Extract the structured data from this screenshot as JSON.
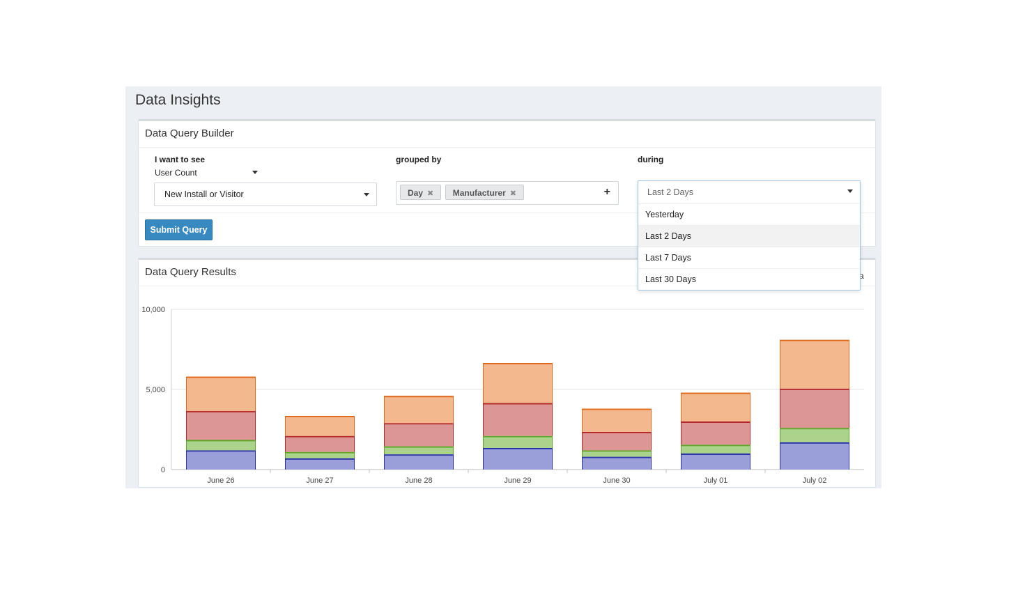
{
  "page_title": "Data Insights",
  "builder": {
    "title": "Data Query Builder",
    "want_label": "I want to see",
    "metric_value": "User Count",
    "subtype_value": "New Install or Visitor",
    "grouped_label": "grouped by",
    "group_tags": [
      "Day",
      "Manufacturer"
    ],
    "add_icon": "plus-icon",
    "during_label": "during",
    "submit_label": "Submit Query"
  },
  "period_dropdown": {
    "current": "Last 2 Days",
    "options": [
      "Yesterday",
      "Last 2 Days",
      "Last 7 Days",
      "Last 30 Days"
    ],
    "highlighted": "Last 2 Days"
  },
  "results": {
    "title": "Data Query Results",
    "partial_text": "a"
  },
  "colors": {
    "primary_button": "#3789c0",
    "header_bg": "#ecf0f4"
  },
  "chart_data": {
    "type": "bar",
    "stacked": true,
    "categories": [
      "June 26",
      "June 27",
      "June 28",
      "June 29",
      "June 30",
      "July 01",
      "July 02"
    ],
    "yticks": [
      0,
      5000,
      10000
    ],
    "ytick_labels": [
      "0",
      "5,000",
      "10,000"
    ],
    "ylim": [
      0,
      10000
    ],
    "grid": true,
    "legend": "none",
    "series": [
      {
        "fill": "#9b9fd9",
        "stroke": "#2c35a8",
        "values": [
          1200,
          700,
          950,
          1350,
          800,
          1000,
          1700
        ]
      },
      {
        "fill": "#acd38b",
        "stroke": "#62a42b",
        "values": [
          650,
          400,
          500,
          750,
          400,
          550,
          900
        ]
      },
      {
        "fill": "#dd9696",
        "stroke": "#b52a2a",
        "values": [
          1800,
          1000,
          1450,
          2050,
          1150,
          1450,
          2450
        ]
      },
      {
        "fill": "#f3b88d",
        "stroke": "#e06a1d",
        "values": [
          2150,
          1250,
          1700,
          2500,
          1450,
          1800,
          3050
        ]
      }
    ]
  }
}
